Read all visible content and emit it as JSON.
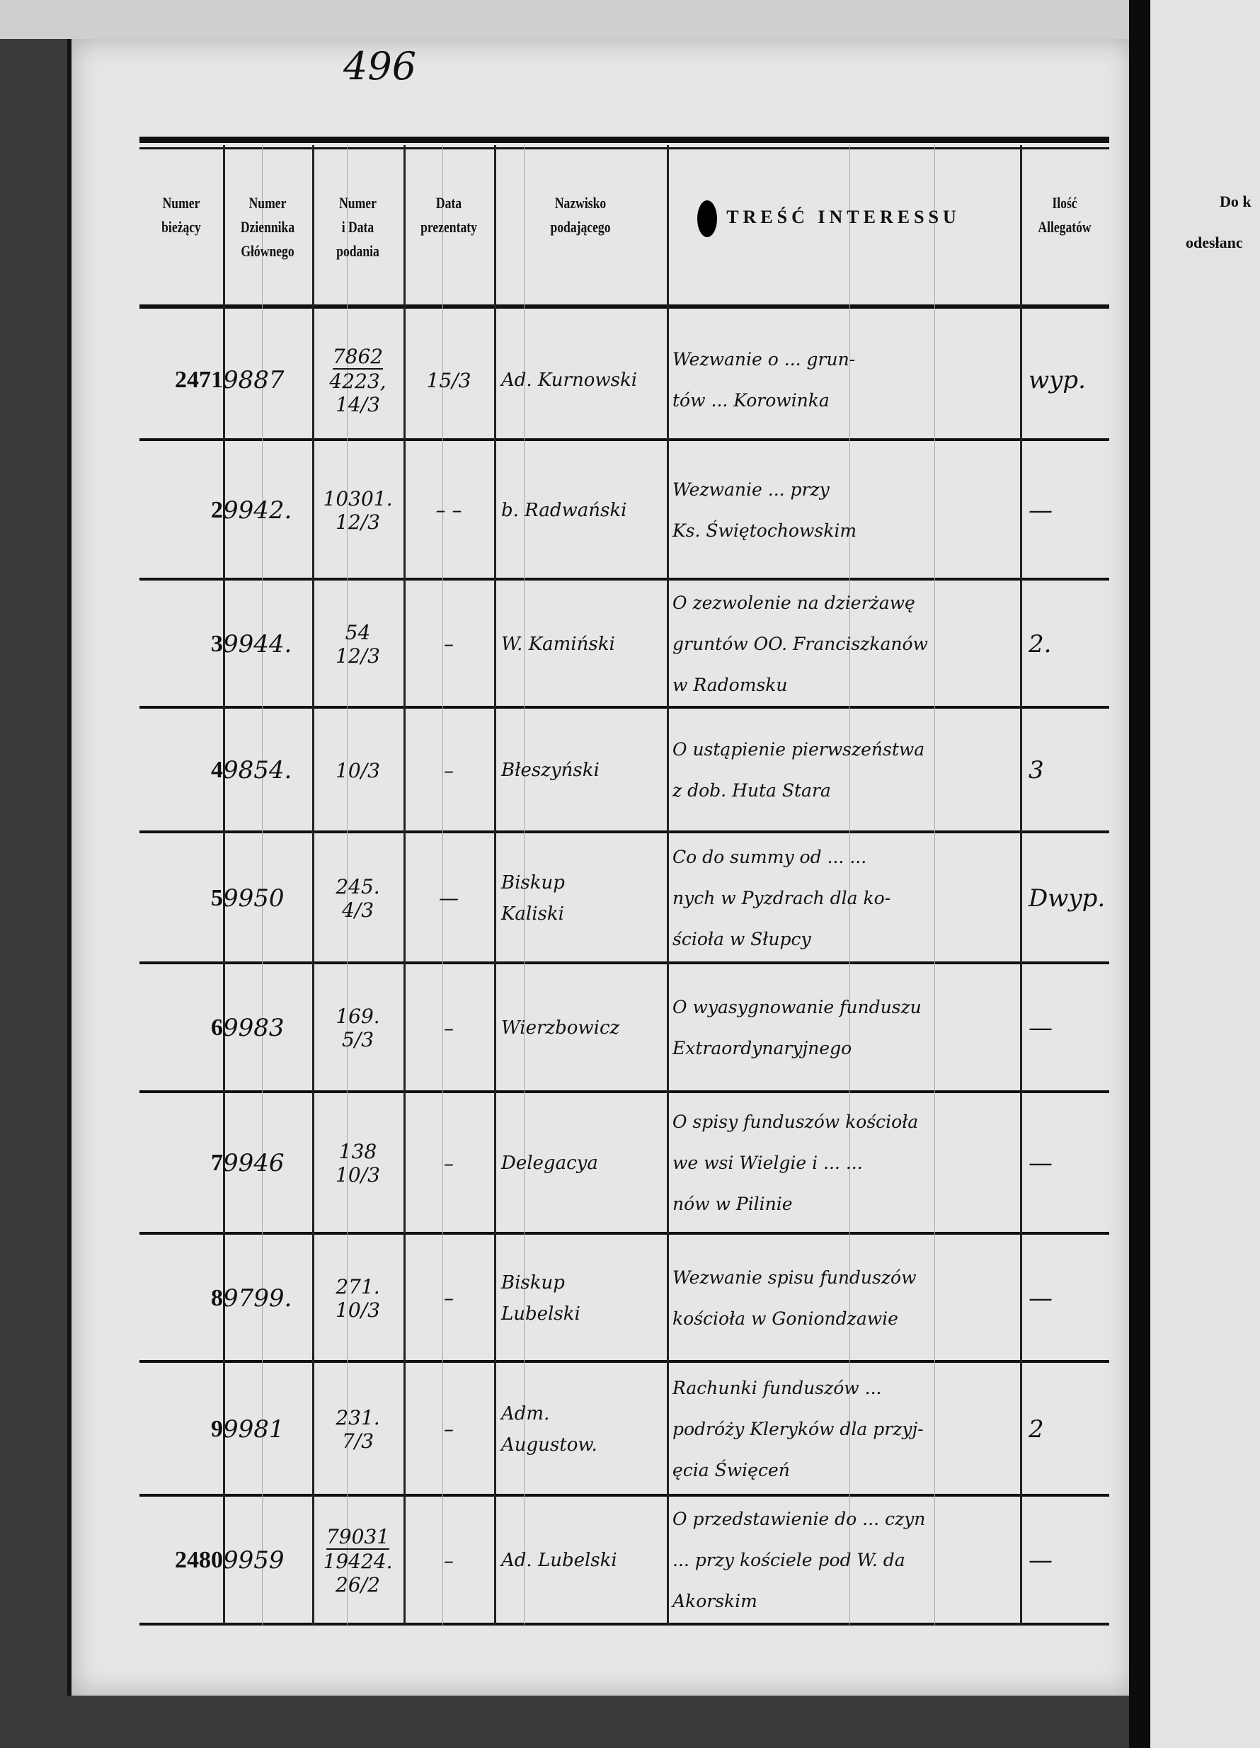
{
  "page_number": "496",
  "headers": [
    {
      "lines": [
        "Numer",
        "bieżący"
      ]
    },
    {
      "lines": [
        "Numer",
        "Dziennika",
        "Głównego"
      ]
    },
    {
      "lines": [
        "Numer",
        "i Data",
        "podania"
      ]
    },
    {
      "lines": [
        "Data",
        "prezentaty"
      ]
    },
    {
      "lines": [
        "Nazwisko",
        "podającego"
      ]
    },
    {
      "lines": [
        "TREŚĆ INTERESSU"
      ]
    },
    {
      "lines": [
        "Ilość",
        "Allegatów"
      ]
    }
  ],
  "right_page_header": [
    "Do k",
    "odesłanc"
  ],
  "rows": [
    {
      "nr": "2471",
      "dziennik": "9887",
      "podanie": [
        "7862",
        "4223,",
        "14/3"
      ],
      "prezentata": "15/3",
      "nazwisko": [
        "Ad. Kurnowski"
      ],
      "tresc": [
        "Wezwanie o ... grun-",
        "tów ... Korowinka"
      ],
      "allegaty": "wyp."
    },
    {
      "nr": "2",
      "dziennik": "9942.",
      "podanie": [
        "10301.",
        "12/3"
      ],
      "prezentata": "– –",
      "nazwisko": [
        "b. Radwański"
      ],
      "tresc": [
        "Wezwanie ... przy",
        "Ks. Świętochowskim"
      ],
      "allegaty": "—"
    },
    {
      "nr": "3",
      "dziennik": "9944.",
      "podanie": [
        "54",
        "12/3"
      ],
      "prezentata": "–",
      "nazwisko": [
        "W. Kamiński"
      ],
      "tresc": [
        "O zezwolenie na dzierżawę",
        "gruntów OO. Franciszkanów",
        "w Radomsku"
      ],
      "allegaty": "2."
    },
    {
      "nr": "4",
      "dziennik": "9854.",
      "podanie": [
        "10/3"
      ],
      "prezentata": "–",
      "nazwisko": [
        "Błeszyński"
      ],
      "tresc": [
        "O ustąpienie pierwszeństwa",
        "z dob. Huta Stara"
      ],
      "allegaty": "3"
    },
    {
      "nr": "5",
      "dziennik": "9950",
      "podanie": [
        "245.",
        "4/3"
      ],
      "prezentata": "—",
      "nazwisko": [
        "Biskup",
        "Kaliski"
      ],
      "tresc": [
        "Co do summy od ... ...",
        "nych w Pyzdrach dla ko-",
        "ścioła w Słupcy"
      ],
      "allegaty": "Dwyp."
    },
    {
      "nr": "6",
      "dziennik": "9983",
      "podanie": [
        "169.",
        "5/3"
      ],
      "prezentata": "–",
      "nazwisko": [
        "Wierzbowicz"
      ],
      "tresc": [
        "O wyasygnowanie funduszu",
        "Extraordynaryjnego"
      ],
      "allegaty": "—"
    },
    {
      "nr": "7",
      "dziennik": "9946",
      "podanie": [
        "138",
        "10/3"
      ],
      "prezentata": "–",
      "nazwisko": [
        "Delegacya"
      ],
      "tresc": [
        "O spisy funduszów kościoła",
        "we wsi Wielgie i ... ...",
        "nów w Pilinie"
      ],
      "allegaty": "—"
    },
    {
      "nr": "8",
      "dziennik": "9799.",
      "podanie": [
        "271.",
        "10/3"
      ],
      "prezentata": "–",
      "nazwisko": [
        "Biskup",
        "Lubelski"
      ],
      "tresc": [
        "Wezwanie spisu funduszów",
        "kościoła w Goniondzawie"
      ],
      "allegaty": "—"
    },
    {
      "nr": "9",
      "dziennik": "9981",
      "podanie": [
        "231.",
        "7/3"
      ],
      "prezentata": "–",
      "nazwisko": [
        "Adm.",
        "Augustow."
      ],
      "tresc": [
        "Rachunki funduszów ...",
        "podróży Kleryków dla przyj-",
        "ęcia Święceń"
      ],
      "allegaty": "2"
    },
    {
      "nr": "2480",
      "dziennik": "9959",
      "podanie": [
        "79031",
        "19424.",
        "26/2"
      ],
      "prezentata": "–",
      "nazwisko": [
        "Ad. Lubelski"
      ],
      "tresc": [
        "O przedstawienie do ... czyn",
        "... przy kościele pod W. da",
        "Akorskim"
      ],
      "allegaty": "—"
    }
  ]
}
